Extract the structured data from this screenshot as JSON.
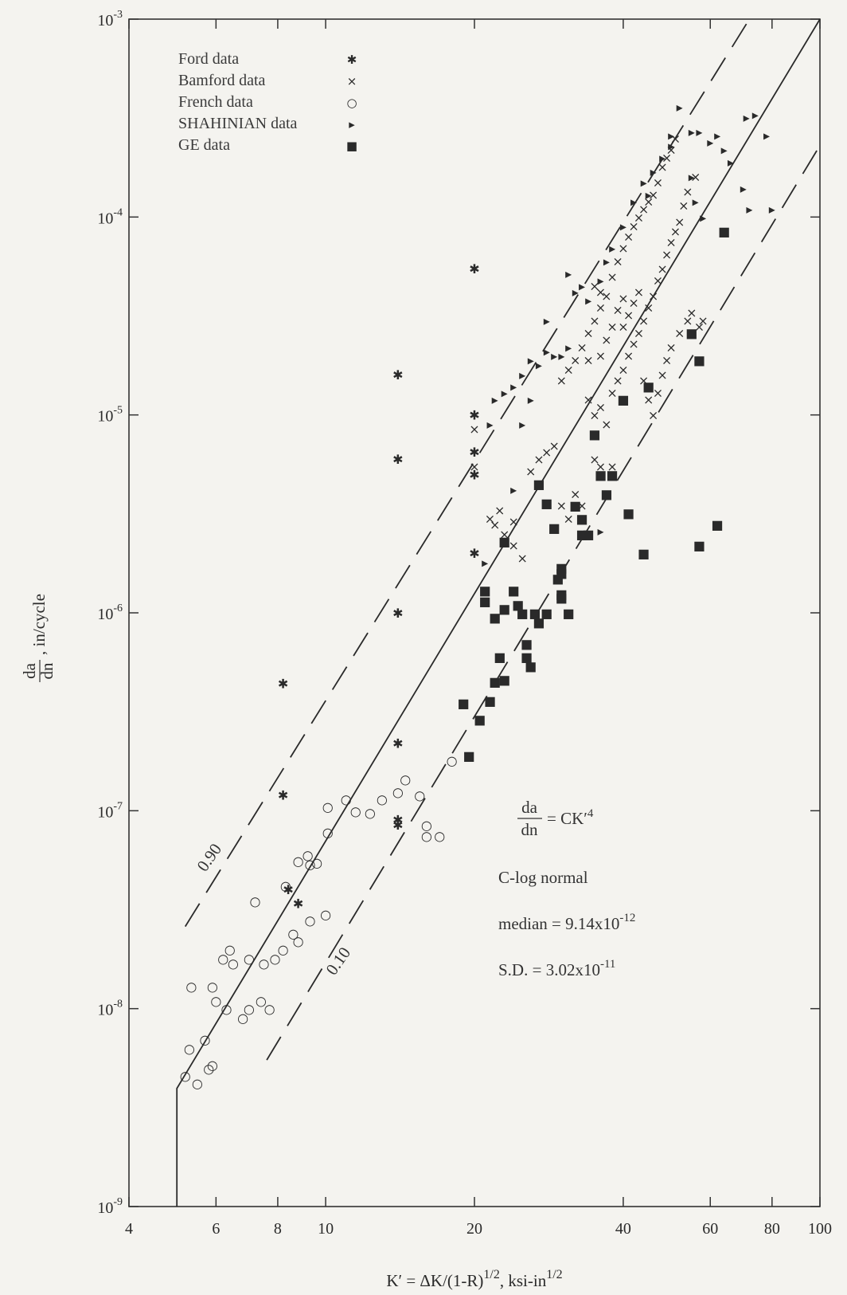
{
  "chart_data": {
    "type": "scatter",
    "xscale": "log",
    "yscale": "log",
    "xlim": [
      4,
      100
    ],
    "ylim": [
      1e-09,
      0.001
    ],
    "x_ticks": [
      4,
      6,
      8,
      10,
      20,
      40,
      60,
      80,
      100
    ],
    "x_tick_labels": [
      "4",
      "6",
      "8",
      "10",
      "20",
      "40",
      "60",
      "80",
      "100"
    ],
    "y_ticks": [
      1e-09,
      1e-08,
      1e-07,
      1e-06,
      1e-05,
      0.0001,
      0.001
    ],
    "y_tick_bases": [
      "10",
      "10",
      "10",
      "10",
      "10",
      "10",
      "10"
    ],
    "y_tick_exponents": [
      "-9",
      "-8",
      "-7",
      "-6",
      "-5",
      "-4",
      "-3"
    ],
    "xlabel": {
      "main": "K′ = ΔK/(1-R)",
      "sup1": "1/2",
      "mid": ", ksi-in",
      "sup2": "1/2"
    },
    "ylabel": {
      "numerator": "da",
      "denominator": "dn",
      "suffix": ", in/cycle"
    },
    "legend_position": "top-left",
    "series": [
      {
        "name": "Ford data",
        "marker": "✱",
        "points": [
          [
            8.2,
            4.4e-07
          ],
          [
            8.2,
            1.2e-07
          ],
          [
            14,
            1.6e-05
          ],
          [
            14,
            6e-06
          ],
          [
            14,
            1e-06
          ],
          [
            14,
            2.2e-07
          ],
          [
            14,
            9e-08
          ],
          [
            20,
            5.5e-05
          ],
          [
            20,
            1e-05
          ],
          [
            20,
            6.5e-06
          ],
          [
            20,
            5e-06
          ],
          [
            20,
            2e-06
          ],
          [
            8.8,
            3.4e-08
          ],
          [
            8.4,
            4e-08
          ],
          [
            14,
            8.5e-08
          ]
        ]
      },
      {
        "name": "Bamford data",
        "marker": "⨯",
        "points": [
          [
            20,
            8.5e-06
          ],
          [
            20,
            5.5e-06
          ],
          [
            21.5,
            3e-06
          ],
          [
            22,
            2.8e-06
          ],
          [
            23,
            2.5e-06
          ],
          [
            24,
            2.2e-06
          ],
          [
            25,
            1.9e-06
          ],
          [
            22.5,
            3.3e-06
          ],
          [
            24,
            2.9e-06
          ],
          [
            26,
            5.2e-06
          ],
          [
            27,
            6e-06
          ],
          [
            28,
            6.5e-06
          ],
          [
            29,
            7e-06
          ],
          [
            30,
            3.5e-06
          ],
          [
            31,
            3e-06
          ],
          [
            32,
            4e-06
          ],
          [
            33,
            3.5e-06
          ],
          [
            35,
            6e-06
          ],
          [
            36,
            5.5e-06
          ],
          [
            38,
            5.5e-06
          ],
          [
            30,
            1.5e-05
          ],
          [
            31,
            1.7e-05
          ],
          [
            32,
            1.9e-05
          ],
          [
            33,
            2.2e-05
          ],
          [
            34,
            2.6e-05
          ],
          [
            35,
            3e-05
          ],
          [
            36,
            3.5e-05
          ],
          [
            37,
            4e-05
          ],
          [
            38,
            5e-05
          ],
          [
            39,
            6e-05
          ],
          [
            40,
            7e-05
          ],
          [
            41,
            8e-05
          ],
          [
            42,
            9e-05
          ],
          [
            43,
            0.0001
          ],
          [
            44,
            0.00011
          ],
          [
            45,
            0.00012
          ],
          [
            46,
            0.00013
          ],
          [
            47,
            0.00015
          ],
          [
            48,
            0.00018
          ],
          [
            49,
            0.0002
          ],
          [
            50,
            0.00022
          ],
          [
            51,
            0.00025
          ],
          [
            34,
            1.2e-05
          ],
          [
            35,
            1e-05
          ],
          [
            36,
            1.1e-05
          ],
          [
            37,
            9e-06
          ],
          [
            38,
            1.3e-05
          ],
          [
            39,
            1.5e-05
          ],
          [
            40,
            1.7e-05
          ],
          [
            41,
            2e-05
          ],
          [
            42,
            2.3e-05
          ],
          [
            43,
            2.6e-05
          ],
          [
            44,
            3e-05
          ],
          [
            45,
            3.5e-05
          ],
          [
            46,
            4e-05
          ],
          [
            47,
            4.8e-05
          ],
          [
            48,
            5.5e-05
          ],
          [
            49,
            6.5e-05
          ],
          [
            50,
            7.5e-05
          ],
          [
            51,
            8.5e-05
          ],
          [
            52,
            9.5e-05
          ],
          [
            53,
            0.000115
          ],
          [
            54,
            0.000135
          ],
          [
            56,
            0.00016
          ],
          [
            44,
            1.5e-05
          ],
          [
            45,
            1.2e-05
          ],
          [
            46,
            1e-05
          ],
          [
            47,
            1.3e-05
          ],
          [
            48,
            1.6e-05
          ],
          [
            49,
            1.9e-05
          ],
          [
            50,
            2.2e-05
          ],
          [
            52,
            2.6e-05
          ],
          [
            54,
            3e-05
          ],
          [
            55,
            3.3e-05
          ],
          [
            57,
            2.8e-05
          ],
          [
            58,
            3e-05
          ],
          [
            40,
            2.8e-05
          ],
          [
            41,
            3.2e-05
          ],
          [
            42,
            3.7e-05
          ],
          [
            43,
            4.2e-05
          ],
          [
            36,
            2e-05
          ],
          [
            37,
            2.4e-05
          ],
          [
            38,
            2.8e-05
          ],
          [
            39,
            3.4e-05
          ],
          [
            40,
            3.9e-05
          ],
          [
            35,
            4.5e-05
          ],
          [
            36,
            4.2e-05
          ],
          [
            34,
            1.9e-05
          ]
        ]
      },
      {
        "name": "French data",
        "marker": "○",
        "points": [
          [
            5.2,
            4.6e-09
          ],
          [
            5.3,
            6.3e-09
          ],
          [
            5.35,
            1.3e-08
          ],
          [
            5.5,
            4.2e-09
          ],
          [
            5.7,
            7e-09
          ],
          [
            5.8,
            5e-09
          ],
          [
            5.9,
            5.2e-09
          ],
          [
            5.9,
            1.3e-08
          ],
          [
            6,
            1.1e-08
          ],
          [
            6.2,
            1.8e-08
          ],
          [
            6.3,
            1e-08
          ],
          [
            6.4,
            2e-08
          ],
          [
            6.5,
            1.7e-08
          ],
          [
            6.8,
            9e-09
          ],
          [
            7,
            1.8e-08
          ],
          [
            7,
            1e-08
          ],
          [
            7.2,
            3.5e-08
          ],
          [
            7.4,
            1.1e-08
          ],
          [
            7.5,
            1.7e-08
          ],
          [
            7.7,
            1e-08
          ],
          [
            7.9,
            1.8e-08
          ],
          [
            8.2,
            2e-08
          ],
          [
            8.3,
            4.2e-08
          ],
          [
            8.6,
            2.4e-08
          ],
          [
            8.8,
            2.2e-08
          ],
          [
            8.8,
            5.6e-08
          ],
          [
            9.2,
            6e-08
          ],
          [
            9.3,
            5.4e-08
          ],
          [
            9.3,
            2.8e-08
          ],
          [
            9.6,
            5.5e-08
          ],
          [
            10,
            3e-08
          ],
          [
            10.1,
            7.8e-08
          ],
          [
            10.1,
            1.05e-07
          ],
          [
            11,
            1.15e-07
          ],
          [
            11.5,
            1e-07
          ],
          [
            12.3,
            9.8e-08
          ],
          [
            13,
            1.15e-07
          ],
          [
            14,
            1.25e-07
          ],
          [
            14.5,
            1.45e-07
          ],
          [
            15.5,
            1.2e-07
          ],
          [
            16,
            8.5e-08
          ],
          [
            16,
            7.5e-08
          ],
          [
            17,
            7.5e-08
          ],
          [
            18,
            1.8e-07
          ]
        ]
      },
      {
        "name": "SHAHINIAN data",
        "marker": "▸",
        "points": [
          [
            21,
            1.8e-06
          ],
          [
            21.5,
            9e-06
          ],
          [
            22,
            1.2e-05
          ],
          [
            23,
            1.3e-05
          ],
          [
            24,
            1.4e-05
          ],
          [
            25,
            1.6e-05
          ],
          [
            26,
            1.9e-05
          ],
          [
            27,
            1.8e-05
          ],
          [
            28,
            2.1e-05
          ],
          [
            29,
            2e-05
          ],
          [
            30,
            2e-05
          ],
          [
            31,
            2.2e-05
          ],
          [
            31,
            5.2e-05
          ],
          [
            32,
            4.2e-05
          ],
          [
            33,
            4.5e-05
          ],
          [
            34,
            3.8e-05
          ],
          [
            36,
            4.8e-05
          ],
          [
            37,
            6e-05
          ],
          [
            38,
            7e-05
          ],
          [
            40,
            9e-05
          ],
          [
            42,
            0.00012
          ],
          [
            44,
            0.00015
          ],
          [
            45,
            0.00013
          ],
          [
            46,
            0.00017
          ],
          [
            48,
            0.0002
          ],
          [
            50,
            0.00026
          ],
          [
            52,
            0.00036
          ],
          [
            55,
            0.00016
          ],
          [
            57,
            0.00027
          ],
          [
            60,
            0.00024
          ],
          [
            62,
            0.00026
          ],
          [
            64,
            0.00022
          ],
          [
            66,
            0.00019
          ],
          [
            70,
            0.00014
          ],
          [
            71,
            0.00032
          ],
          [
            74,
            0.00033
          ],
          [
            78,
            0.00026
          ],
          [
            80,
            0.00011
          ],
          [
            72,
            0.00011
          ],
          [
            58,
            0.0001
          ],
          [
            56,
            0.00012
          ],
          [
            24,
            4.2e-06
          ],
          [
            25,
            9e-06
          ],
          [
            26,
            1.2e-05
          ],
          [
            36,
            2.6e-06
          ],
          [
            28,
            3e-05
          ],
          [
            50,
            0.00023
          ],
          [
            55,
            0.00027
          ]
        ]
      },
      {
        "name": "GE data",
        "marker": "■",
        "points": [
          [
            19,
            3.5e-07
          ],
          [
            19.5,
            1.9e-07
          ],
          [
            20.5,
            2.9e-07
          ],
          [
            21,
            1.3e-06
          ],
          [
            21,
            1.15e-06
          ],
          [
            21.5,
            3.6e-07
          ],
          [
            22,
            4.5e-07
          ],
          [
            22,
            9.5e-07
          ],
          [
            22.5,
            6e-07
          ],
          [
            23,
            1.05e-06
          ],
          [
            23,
            4.6e-07
          ],
          [
            24,
            1.3e-06
          ],
          [
            24.5,
            1.1e-06
          ],
          [
            25,
            1e-06
          ],
          [
            25.5,
            7e-07
          ],
          [
            25.5,
            6e-07
          ],
          [
            26,
            5.4e-07
          ],
          [
            26.5,
            1e-06
          ],
          [
            27,
            4.5e-06
          ],
          [
            27,
            9e-07
          ],
          [
            28,
            1e-06
          ],
          [
            28,
            3.6e-06
          ],
          [
            29,
            2.7e-06
          ],
          [
            29.5,
            1.5e-06
          ],
          [
            30,
            1.2e-06
          ],
          [
            30,
            1.6e-06
          ],
          [
            30,
            1.25e-06
          ],
          [
            31,
            1e-06
          ],
          [
            32,
            3.5e-06
          ],
          [
            33,
            3e-06
          ],
          [
            34,
            2.5e-06
          ],
          [
            35,
            8e-06
          ],
          [
            36,
            5e-06
          ],
          [
            37,
            4e-06
          ],
          [
            38,
            5e-06
          ],
          [
            40,
            1.2e-05
          ],
          [
            41,
            3.2e-06
          ],
          [
            44,
            2e-06
          ],
          [
            45,
            1.4e-05
          ],
          [
            55,
            2.6e-05
          ],
          [
            57,
            1.9e-05
          ],
          [
            57,
            2.2e-06
          ],
          [
            62,
            2.8e-06
          ],
          [
            64,
            8.5e-05
          ],
          [
            33,
            2.5e-06
          ],
          [
            23,
            2.3e-06
          ],
          [
            30,
            1.7e-06
          ]
        ]
      }
    ],
    "lines": [
      {
        "label": "median",
        "style": "solid",
        "points": [
          [
            5,
            1e-09
          ],
          [
            5,
            3.95e-09
          ],
          [
            100,
            0.001
          ]
        ]
      },
      {
        "label": "0.90",
        "style": "dashed",
        "points": [
          [
            5.2,
            2.6e-08
          ],
          [
            72,
            0.001
          ]
        ]
      },
      {
        "label": "0.10",
        "style": "dashed",
        "points": [
          [
            7.6,
            5.5e-09
          ],
          [
            100,
            0.00023
          ]
        ]
      }
    ],
    "annotations": {
      "eq_numerator": "da",
      "eq_denominator": "dn",
      "eq_rhs": "= CK′",
      "eq_exp": "4",
      "distribution": "C-log normal",
      "median_text": "median = 9.14x10",
      "median_exp": "-12",
      "sd_text": "S.D. = 3.02x10",
      "sd_exp": "-11",
      "line_label_90": "0.90",
      "line_label_10": "0.10"
    }
  }
}
